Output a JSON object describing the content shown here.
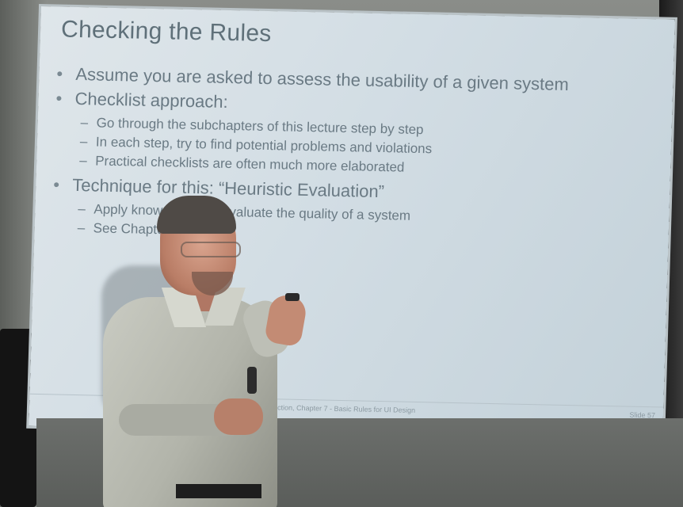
{
  "slide": {
    "title": "Checking the Rules",
    "bullets": [
      {
        "text": "Assume you are asked to assess the usability of a given system",
        "sub": []
      },
      {
        "text": "Checklist approach:",
        "sub": [
          "Go through the subchapters of this lecture step by step",
          "In each step, try to find potential problems and violations",
          "Practical checklists are often much more elaborated"
        ]
      },
      {
        "text": "Technique for this: “Heuristic Evaluation”",
        "sub": [
          "Apply known rules to evaluate the quality of a system",
          "See Chapter 13"
        ]
      }
    ],
    "footer_text": "eraction, Chapter 7 - Basic Rules for UI Design",
    "slide_number": "Slide 57"
  },
  "colors": {
    "slide_text": "#6a7a84",
    "slide_bg": "#d2dde4"
  }
}
